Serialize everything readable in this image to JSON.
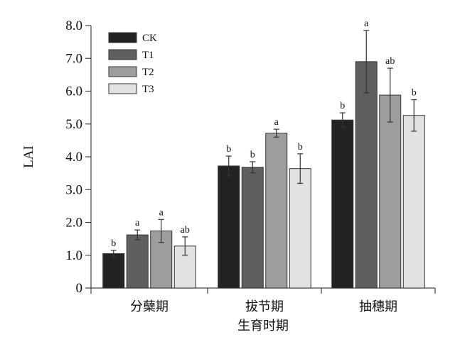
{
  "chart_data": {
    "type": "bar",
    "title": "",
    "xlabel": "生育时期",
    "ylabel": "LAI",
    "ylim": [
      0,
      8
    ],
    "yticks": [
      "0",
      "1.0",
      "2.0",
      "3.0",
      "4.0",
      "5.0",
      "6.0",
      "7.0",
      "8.0"
    ],
    "categories": [
      "分蘖期",
      "拔节期",
      "抽穗期"
    ],
    "legend_position": "top-left",
    "grid": false,
    "series": [
      {
        "name": "CK",
        "color": "#222222",
        "values": [
          1.05,
          3.72,
          5.12
        ],
        "errors": [
          0.1,
          0.3,
          0.22
        ],
        "labels": [
          "b",
          "b",
          "b"
        ]
      },
      {
        "name": "T1",
        "color": "#5f5f5f",
        "values": [
          1.62,
          3.68,
          6.9
        ],
        "errors": [
          0.15,
          0.17,
          0.95
        ],
        "labels": [
          "a",
          "b",
          "a"
        ]
      },
      {
        "name": "T2",
        "color": "#9e9e9e",
        "values": [
          1.74,
          4.72,
          5.88
        ],
        "errors": [
          0.35,
          0.12,
          0.82
        ],
        "labels": [
          "a",
          "a",
          "ab"
        ]
      },
      {
        "name": "T3",
        "color": "#e2e2e2",
        "values": [
          1.28,
          3.64,
          5.26
        ],
        "errors": [
          0.28,
          0.45,
          0.48
        ],
        "labels": [
          "ab",
          "b",
          "b"
        ]
      }
    ]
  }
}
